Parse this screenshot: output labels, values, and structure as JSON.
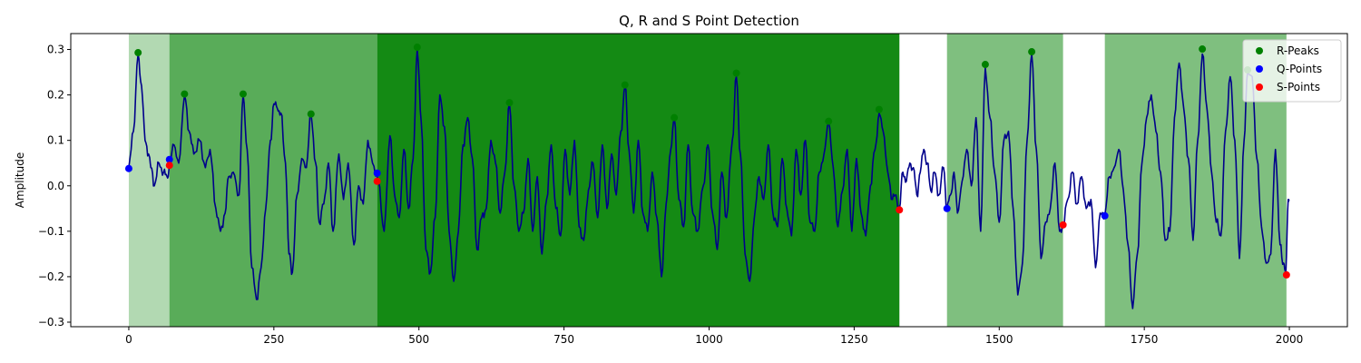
{
  "chart_data": {
    "type": "line",
    "title": "Q, R and S Point Detection",
    "xlabel": "",
    "ylabel": "Amplitude",
    "xlim": [
      -100,
      2100
    ],
    "ylim": [
      -0.31,
      0.335
    ],
    "xticks": [
      0,
      250,
      500,
      750,
      1000,
      1250,
      1500,
      1750,
      2000
    ],
    "yticks": [
      -0.3,
      -0.2,
      -0.1,
      0.0,
      0.1,
      0.2,
      0.3
    ],
    "ytick_labels": [
      "−0.3",
      "−0.2",
      "−0.1",
      "0.0",
      "0.1",
      "0.2",
      "0.3"
    ],
    "grid": false,
    "legend_position": "top-right",
    "line_color": "#00008b",
    "signal_anchors": [
      [
        0,
        0.04
      ],
      [
        8,
        0.12
      ],
      [
        16,
        0.29
      ],
      [
        22,
        0.22
      ],
      [
        28,
        0.1
      ],
      [
        34,
        0.07
      ],
      [
        38,
        0.04
      ],
      [
        44,
        0.0
      ],
      [
        52,
        0.05
      ],
      [
        60,
        0.03
      ],
      [
        66,
        0.02
      ],
      [
        70,
        0.045
      ],
      [
        78,
        0.09
      ],
      [
        86,
        0.05
      ],
      [
        96,
        0.2
      ],
      [
        104,
        0.12
      ],
      [
        112,
        0.07
      ],
      [
        122,
        0.1
      ],
      [
        132,
        0.04
      ],
      [
        140,
        0.08
      ],
      [
        150,
        -0.05
      ],
      [
        158,
        -0.1
      ],
      [
        166,
        -0.06
      ],
      [
        172,
        0.02
      ],
      [
        180,
        0.03
      ],
      [
        190,
        -0.02
      ],
      [
        197,
        0.2
      ],
      [
        204,
        0.08
      ],
      [
        212,
        -0.18
      ],
      [
        220,
        -0.25
      ],
      [
        228,
        -0.18
      ],
      [
        236,
        -0.05
      ],
      [
        244,
        0.1
      ],
      [
        250,
        0.18
      ],
      [
        256,
        0.17
      ],
      [
        262,
        0.16
      ],
      [
        270,
        0.05
      ],
      [
        276,
        -0.15
      ],
      [
        282,
        -0.19
      ],
      [
        290,
        -0.02
      ],
      [
        298,
        0.06
      ],
      [
        306,
        0.04
      ],
      [
        314,
        0.16
      ],
      [
        322,
        0.05
      ],
      [
        328,
        -0.08
      ],
      [
        336,
        -0.04
      ],
      [
        344,
        0.05
      ],
      [
        352,
        -0.1
      ],
      [
        362,
        0.07
      ],
      [
        370,
        -0.03
      ],
      [
        378,
        0.05
      ],
      [
        388,
        -0.13
      ],
      [
        396,
        0.0
      ],
      [
        404,
        -0.04
      ],
      [
        412,
        0.1
      ],
      [
        420,
        0.05
      ],
      [
        430,
        0.01
      ],
      [
        440,
        -0.1
      ],
      [
        450,
        0.11
      ],
      [
        458,
        -0.02
      ],
      [
        466,
        -0.07
      ],
      [
        474,
        0.08
      ],
      [
        482,
        -0.05
      ],
      [
        490,
        0.06
      ],
      [
        497,
        0.3
      ],
      [
        504,
        0.14
      ],
      [
        512,
        -0.14
      ],
      [
        520,
        -0.19
      ],
      [
        528,
        -0.07
      ],
      [
        536,
        0.2
      ],
      [
        544,
        0.13
      ],
      [
        552,
        -0.1
      ],
      [
        560,
        -0.21
      ],
      [
        568,
        -0.1
      ],
      [
        576,
        0.09
      ],
      [
        584,
        0.15
      ],
      [
        592,
        0.06
      ],
      [
        600,
        -0.14
      ],
      [
        608,
        -0.07
      ],
      [
        616,
        -0.05
      ],
      [
        624,
        0.1
      ],
      [
        632,
        0.05
      ],
      [
        640,
        -0.06
      ],
      [
        648,
        0.03
      ],
      [
        656,
        0.18
      ],
      [
        664,
        0.0
      ],
      [
        672,
        -0.1
      ],
      [
        680,
        -0.06
      ],
      [
        688,
        0.06
      ],
      [
        696,
        -0.1
      ],
      [
        704,
        0.02
      ],
      [
        712,
        -0.15
      ],
      [
        720,
        -0.03
      ],
      [
        728,
        0.09
      ],
      [
        736,
        -0.05
      ],
      [
        744,
        -0.11
      ],
      [
        752,
        0.08
      ],
      [
        760,
        -0.02
      ],
      [
        768,
        0.1
      ],
      [
        776,
        -0.09
      ],
      [
        784,
        -0.12
      ],
      [
        792,
        -0.01
      ],
      [
        800,
        0.05
      ],
      [
        808,
        -0.07
      ],
      [
        816,
        0.09
      ],
      [
        824,
        -0.05
      ],
      [
        832,
        0.07
      ],
      [
        840,
        -0.02
      ],
      [
        848,
        0.12
      ],
      [
        855,
        0.22
      ],
      [
        862,
        0.08
      ],
      [
        870,
        -0.06
      ],
      [
        878,
        0.1
      ],
      [
        886,
        -0.06
      ],
      [
        894,
        -0.1
      ],
      [
        902,
        0.03
      ],
      [
        910,
        -0.07
      ],
      [
        918,
        -0.2
      ],
      [
        926,
        -0.04
      ],
      [
        934,
        0.08
      ],
      [
        940,
        0.15
      ],
      [
        948,
        -0.03
      ],
      [
        956,
        -0.09
      ],
      [
        964,
        0.09
      ],
      [
        972,
        -0.06
      ],
      [
        980,
        -0.1
      ],
      [
        990,
        0.0
      ],
      [
        998,
        0.09
      ],
      [
        1006,
        -0.06
      ],
      [
        1014,
        -0.14
      ],
      [
        1022,
        0.03
      ],
      [
        1030,
        -0.07
      ],
      [
        1040,
        0.1
      ],
      [
        1047,
        0.24
      ],
      [
        1054,
        0.07
      ],
      [
        1062,
        -0.15
      ],
      [
        1070,
        -0.21
      ],
      [
        1078,
        -0.07
      ],
      [
        1086,
        0.02
      ],
      [
        1094,
        -0.03
      ],
      [
        1102,
        0.09
      ],
      [
        1110,
        -0.06
      ],
      [
        1118,
        -0.09
      ],
      [
        1126,
        0.06
      ],
      [
        1134,
        -0.05
      ],
      [
        1142,
        -0.11
      ],
      [
        1150,
        0.08
      ],
      [
        1158,
        -0.02
      ],
      [
        1166,
        0.1
      ],
      [
        1174,
        -0.08
      ],
      [
        1182,
        -0.1
      ],
      [
        1190,
        0.03
      ],
      [
        1198,
        0.07
      ],
      [
        1206,
        0.14
      ],
      [
        1214,
        0.04
      ],
      [
        1222,
        -0.09
      ],
      [
        1230,
        -0.01
      ],
      [
        1238,
        0.08
      ],
      [
        1246,
        -0.1
      ],
      [
        1254,
        0.06
      ],
      [
        1262,
        -0.06
      ],
      [
        1270,
        -0.11
      ],
      [
        1278,
        0.0
      ],
      [
        1286,
        0.08
      ],
      [
        1293,
        0.16
      ],
      [
        1300,
        0.12
      ],
      [
        1308,
        0.03
      ],
      [
        1316,
        -0.03
      ],
      [
        1322,
        -0.02
      ],
      [
        1328,
        -0.05
      ],
      [
        1334,
        0.03
      ],
      [
        1340,
        0.01
      ],
      [
        1346,
        0.05
      ],
      [
        1352,
        0.04
      ],
      [
        1358,
        -0.02
      ],
      [
        1364,
        0.03
      ],
      [
        1370,
        0.08
      ],
      [
        1376,
        0.05
      ],
      [
        1382,
        -0.01
      ],
      [
        1388,
        0.03
      ],
      [
        1396,
        -0.02
      ],
      [
        1404,
        0.04
      ],
      [
        1410,
        -0.05
      ],
      [
        1416,
        -0.02
      ],
      [
        1422,
        0.03
      ],
      [
        1428,
        -0.06
      ],
      [
        1436,
        0.01
      ],
      [
        1444,
        0.08
      ],
      [
        1452,
        0.0
      ],
      [
        1460,
        0.15
      ],
      [
        1468,
        -0.1
      ],
      [
        1476,
        0.26
      ],
      [
        1484,
        0.15
      ],
      [
        1492,
        0.03
      ],
      [
        1500,
        -0.08
      ],
      [
        1508,
        0.1
      ],
      [
        1516,
        0.12
      ],
      [
        1524,
        -0.05
      ],
      [
        1532,
        -0.24
      ],
      [
        1540,
        -0.17
      ],
      [
        1548,
        0.1
      ],
      [
        1556,
        0.29
      ],
      [
        1564,
        0.08
      ],
      [
        1572,
        -0.16
      ],
      [
        1580,
        -0.08
      ],
      [
        1588,
        -0.05
      ],
      [
        1596,
        0.05
      ],
      [
        1604,
        -0.1
      ],
      [
        1610,
        -0.09
      ],
      [
        1618,
        -0.03
      ],
      [
        1626,
        0.03
      ],
      [
        1634,
        -0.04
      ],
      [
        1642,
        0.02
      ],
      [
        1650,
        -0.05
      ],
      [
        1658,
        -0.03
      ],
      [
        1666,
        -0.18
      ],
      [
        1674,
        -0.06
      ],
      [
        1682,
        -0.065
      ],
      [
        1690,
        0.02
      ],
      [
        1698,
        0.04
      ],
      [
        1706,
        0.08
      ],
      [
        1714,
        -0.01
      ],
      [
        1722,
        -0.13
      ],
      [
        1730,
        -0.27
      ],
      [
        1738,
        -0.15
      ],
      [
        1746,
        0.05
      ],
      [
        1754,
        0.15
      ],
      [
        1762,
        0.2
      ],
      [
        1770,
        0.12
      ],
      [
        1778,
        0.03
      ],
      [
        1786,
        -0.12
      ],
      [
        1794,
        -0.1
      ],
      [
        1802,
        0.15
      ],
      [
        1810,
        0.27
      ],
      [
        1818,
        0.17
      ],
      [
        1826,
        0.06
      ],
      [
        1834,
        -0.12
      ],
      [
        1842,
        0.1
      ],
      [
        1850,
        0.29
      ],
      [
        1858,
        0.17
      ],
      [
        1866,
        0.03
      ],
      [
        1874,
        -0.08
      ],
      [
        1882,
        -0.11
      ],
      [
        1890,
        0.12
      ],
      [
        1898,
        0.24
      ],
      [
        1906,
        0.1
      ],
      [
        1914,
        -0.16
      ],
      [
        1922,
        0.1
      ],
      [
        1928,
        0.25
      ],
      [
        1936,
        0.24
      ],
      [
        1944,
        0.06
      ],
      [
        1952,
        -0.09
      ],
      [
        1960,
        -0.17
      ],
      [
        1968,
        -0.15
      ],
      [
        1976,
        0.08
      ],
      [
        1984,
        -0.13
      ],
      [
        1990,
        -0.17
      ],
      [
        1994,
        -0.19
      ],
      [
        1998,
        -0.03
      ],
      [
        2000,
        -0.03
      ]
    ],
    "shaded_regions": [
      {
        "x0": 0,
        "x1": 70,
        "color": "#008000",
        "alpha": 0.3
      },
      {
        "x0": 70,
        "x1": 428,
        "color": "#008000",
        "alpha": 0.65
      },
      {
        "x0": 428,
        "x1": 1328,
        "color": "#008000",
        "alpha": 0.92
      },
      {
        "x0": 1410,
        "x1": 1610,
        "color": "#008000",
        "alpha": 0.5
      },
      {
        "x0": 1682,
        "x1": 1995,
        "color": "#008000",
        "alpha": 0.5
      }
    ],
    "series": [
      {
        "name": "R-Peaks",
        "color": "#008000",
        "points": [
          [
            16,
            0.293
          ],
          [
            96,
            0.202
          ],
          [
            197,
            0.202
          ],
          [
            314,
            0.158
          ],
          [
            497,
            0.305
          ],
          [
            656,
            0.183
          ],
          [
            855,
            0.222
          ],
          [
            940,
            0.15
          ],
          [
            1047,
            0.248
          ],
          [
            1206,
            0.142
          ],
          [
            1293,
            0.168
          ],
          [
            1476,
            0.267
          ],
          [
            1556,
            0.295
          ],
          [
            1850,
            0.301
          ],
          [
            1928,
            0.255
          ]
        ]
      },
      {
        "name": "Q-Points",
        "color": "#0000ff",
        "points": [
          [
            0,
            0.038
          ],
          [
            70,
            0.058
          ],
          [
            428,
            0.028
          ],
          [
            1410,
            -0.05
          ],
          [
            1682,
            -0.066
          ]
        ]
      },
      {
        "name": "S-Points",
        "color": "#ff0000",
        "points": [
          [
            70,
            0.045
          ],
          [
            428,
            0.01
          ],
          [
            1328,
            -0.053
          ],
          [
            1610,
            -0.086
          ],
          [
            1995,
            -0.196
          ]
        ]
      }
    ]
  }
}
